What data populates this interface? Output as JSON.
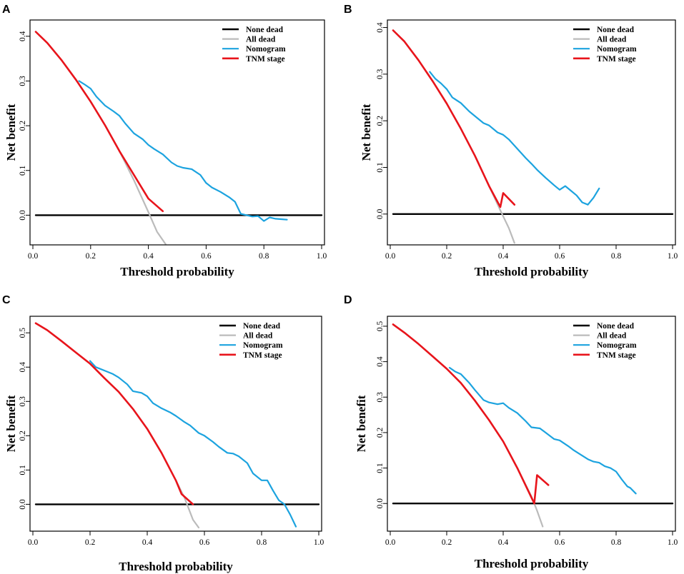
{
  "chart_data": [
    {
      "type": "line",
      "panel": "A",
      "xlabel": "Threshold probability",
      "ylabel": "Net benefit",
      "xlim": [
        0,
        1.0
      ],
      "ylim": [
        -0.06,
        0.43
      ],
      "xticks": [
        "0.0",
        "0.2",
        "0.4",
        "0.6",
        "0.8",
        "1.0"
      ],
      "yticks": [
        "0.0",
        "0.1",
        "0.2",
        "0.3",
        "0.4"
      ],
      "legend_position": "top-right",
      "legend": [
        "None dead",
        "All dead",
        "Nomogram",
        "TNM stage"
      ],
      "colors": {
        "none": "#000000",
        "all": "#bbbbbb",
        "nomogram": "#1ca3df",
        "tnm": "#e8141b"
      },
      "series": [
        {
          "name": "None dead",
          "x": [
            0.01,
            1.0
          ],
          "y": [
            0,
            0
          ]
        },
        {
          "name": "All dead",
          "x": [
            0.01,
            0.05,
            0.1,
            0.15,
            0.2,
            0.25,
            0.3,
            0.35,
            0.4,
            0.43,
            0.46
          ],
          "y": [
            0.41,
            0.385,
            0.346,
            0.302,
            0.254,
            0.201,
            0.143,
            0.078,
            0.007,
            -0.037,
            -0.065
          ]
        },
        {
          "name": "Nomogram",
          "x": [
            0.16,
            0.18,
            0.2,
            0.22,
            0.25,
            0.28,
            0.3,
            0.32,
            0.35,
            0.38,
            0.4,
            0.42,
            0.45,
            0.48,
            0.5,
            0.52,
            0.55,
            0.58,
            0.6,
            0.62,
            0.65,
            0.68,
            0.7,
            0.72,
            0.74,
            0.76,
            0.78,
            0.8,
            0.82,
            0.84,
            0.86,
            0.88
          ],
          "y": [
            0.3,
            0.292,
            0.283,
            0.265,
            0.245,
            0.232,
            0.222,
            0.205,
            0.183,
            0.17,
            0.157,
            0.148,
            0.136,
            0.118,
            0.11,
            0.106,
            0.103,
            0.09,
            0.072,
            0.062,
            0.052,
            0.04,
            0.03,
            0.003,
            0.0,
            -0.003,
            -0.002,
            -0.013,
            -0.005,
            -0.008,
            -0.009,
            -0.01
          ]
        },
        {
          "name": "TNM stage",
          "x": [
            0.01,
            0.05,
            0.1,
            0.15,
            0.2,
            0.25,
            0.3,
            0.35,
            0.4,
            0.45
          ],
          "y": [
            0.41,
            0.385,
            0.346,
            0.302,
            0.254,
            0.201,
            0.143,
            0.09,
            0.037,
            0.009
          ]
        }
      ]
    },
    {
      "type": "line",
      "panel": "B",
      "xlabel": "Threshold probability",
      "ylabel": "Net benefit",
      "xlim": [
        0,
        1.0
      ],
      "ylim": [
        -0.06,
        0.41
      ],
      "xticks": [
        "0.0",
        "0.2",
        "0.4",
        "0.6",
        "0.8",
        "1.0"
      ],
      "yticks": [
        "0.0",
        "0.1",
        "0.2",
        "0.3",
        "0.4"
      ],
      "legend_position": "top-right",
      "legend": [
        "None dead",
        "All dead",
        "Nomogram",
        "TNM stage"
      ],
      "colors": {
        "none": "#000000",
        "all": "#bbbbbb",
        "nomogram": "#1ca3df",
        "tnm": "#e8141b"
      },
      "series": [
        {
          "name": "None dead",
          "x": [
            0.01,
            1.0
          ],
          "y": [
            0,
            0
          ]
        },
        {
          "name": "All dead",
          "x": [
            0.01,
            0.05,
            0.1,
            0.15,
            0.2,
            0.25,
            0.3,
            0.35,
            0.39,
            0.42,
            0.44
          ],
          "y": [
            0.394,
            0.37,
            0.33,
            0.285,
            0.237,
            0.183,
            0.125,
            0.06,
            0.008,
            -0.03,
            -0.062
          ]
        },
        {
          "name": "Nomogram",
          "x": [
            0.14,
            0.16,
            0.18,
            0.2,
            0.22,
            0.25,
            0.28,
            0.3,
            0.33,
            0.35,
            0.38,
            0.4,
            0.42,
            0.45,
            0.48,
            0.5,
            0.52,
            0.55,
            0.58,
            0.6,
            0.62,
            0.64,
            0.66,
            0.68,
            0.7,
            0.72,
            0.74
          ],
          "y": [
            0.305,
            0.29,
            0.28,
            0.268,
            0.25,
            0.238,
            0.22,
            0.21,
            0.195,
            0.19,
            0.175,
            0.17,
            0.16,
            0.14,
            0.12,
            0.108,
            0.095,
            0.078,
            0.062,
            0.052,
            0.06,
            0.05,
            0.04,
            0.025,
            0.02,
            0.035,
            0.055
          ]
        },
        {
          "name": "TNM stage",
          "x": [
            0.01,
            0.05,
            0.1,
            0.15,
            0.2,
            0.25,
            0.3,
            0.35,
            0.39,
            0.4,
            0.44
          ],
          "y": [
            0.394,
            0.37,
            0.33,
            0.285,
            0.237,
            0.183,
            0.125,
            0.06,
            0.015,
            0.045,
            0.02
          ]
        }
      ]
    },
    {
      "type": "line",
      "panel": "C",
      "xlabel": "Threshold probability",
      "ylabel": "Net benefit",
      "xlim": [
        0,
        1.0
      ],
      "ylim": [
        -0.07,
        0.54
      ],
      "xticks": [
        "0.0",
        "0.2",
        "0.4",
        "0.6",
        "0.8",
        "1.0"
      ],
      "yticks": [
        "0.0",
        "0.1",
        "0.2",
        "0.3",
        "0.4",
        "0.5"
      ],
      "legend_position": "top-right",
      "legend": [
        "None dead",
        "All dead",
        "Nomogram",
        "TNM stage"
      ],
      "colors": {
        "none": "#000000",
        "all": "#bbbbbb",
        "nomogram": "#1ca3df",
        "tnm": "#e8141b"
      },
      "series": [
        {
          "name": "None dead",
          "x": [
            0.01,
            1.0
          ],
          "y": [
            0,
            0
          ]
        },
        {
          "name": "All dead",
          "x": [
            0.01,
            0.05,
            0.1,
            0.15,
            0.2,
            0.25,
            0.3,
            0.35,
            0.4,
            0.45,
            0.5,
            0.53,
            0.56,
            0.58
          ],
          "y": [
            0.528,
            0.508,
            0.476,
            0.443,
            0.41,
            0.368,
            0.328,
            0.278,
            0.22,
            0.15,
            0.07,
            0.02,
            -0.045,
            -0.068
          ]
        },
        {
          "name": "Nomogram",
          "x": [
            0.2,
            0.22,
            0.25,
            0.28,
            0.3,
            0.33,
            0.35,
            0.38,
            0.4,
            0.42,
            0.45,
            0.48,
            0.5,
            0.53,
            0.55,
            0.58,
            0.6,
            0.63,
            0.65,
            0.68,
            0.7,
            0.72,
            0.75,
            0.77,
            0.8,
            0.82,
            0.84,
            0.86,
            0.88,
            0.9,
            0.92
          ],
          "y": [
            0.418,
            0.4,
            0.39,
            0.38,
            0.37,
            0.35,
            0.33,
            0.325,
            0.315,
            0.295,
            0.28,
            0.268,
            0.258,
            0.24,
            0.23,
            0.208,
            0.2,
            0.182,
            0.168,
            0.15,
            0.148,
            0.14,
            0.12,
            0.09,
            0.07,
            0.07,
            0.04,
            0.012,
            0.0,
            -0.03,
            -0.065
          ]
        },
        {
          "name": "TNM stage",
          "x": [
            0.01,
            0.05,
            0.1,
            0.15,
            0.2,
            0.25,
            0.3,
            0.35,
            0.4,
            0.45,
            0.5,
            0.52,
            0.56
          ],
          "y": [
            0.528,
            0.508,
            0.476,
            0.443,
            0.41,
            0.368,
            0.328,
            0.278,
            0.22,
            0.15,
            0.07,
            0.03,
            0.0
          ]
        }
      ]
    },
    {
      "type": "line",
      "panel": "D",
      "xlabel": "Threshold probability",
      "ylabel": "Net benefit",
      "xlim": [
        0,
        1.0
      ],
      "ylim": [
        -0.07,
        0.52
      ],
      "xticks": [
        "0.0",
        "0.2",
        "0.4",
        "0.6",
        "0.8",
        "1.0"
      ],
      "yticks": [
        "0.0",
        "0.1",
        "0.2",
        "0.3",
        "0.4",
        "0.5"
      ],
      "legend_position": "top-right",
      "legend": [
        "None dead",
        "All dead",
        "Nomogram",
        "TNM stage"
      ],
      "colors": {
        "none": "#000000",
        "all": "#bbbbbb",
        "nomogram": "#1ca3df",
        "tnm": "#e8141b"
      },
      "series": [
        {
          "name": "None dead",
          "x": [
            0.01,
            1.0
          ],
          "y": [
            0,
            0
          ]
        },
        {
          "name": "All dead",
          "x": [
            0.01,
            0.05,
            0.1,
            0.15,
            0.2,
            0.25,
            0.3,
            0.35,
            0.4,
            0.45,
            0.5,
            0.52,
            0.54
          ],
          "y": [
            0.505,
            0.482,
            0.45,
            0.415,
            0.38,
            0.34,
            0.29,
            0.235,
            0.175,
            0.1,
            0.02,
            -0.02,
            -0.065
          ]
        },
        {
          "name": "Nomogram",
          "x": [
            0.21,
            0.23,
            0.25,
            0.28,
            0.3,
            0.33,
            0.35,
            0.38,
            0.4,
            0.42,
            0.45,
            0.48,
            0.5,
            0.53,
            0.55,
            0.58,
            0.6,
            0.63,
            0.65,
            0.68,
            0.7,
            0.72,
            0.74,
            0.76,
            0.78,
            0.8,
            0.82,
            0.84,
            0.85,
            0.87
          ],
          "y": [
            0.383,
            0.372,
            0.365,
            0.34,
            0.32,
            0.292,
            0.285,
            0.28,
            0.283,
            0.27,
            0.255,
            0.232,
            0.215,
            0.212,
            0.2,
            0.182,
            0.178,
            0.162,
            0.15,
            0.135,
            0.125,
            0.118,
            0.115,
            0.105,
            0.1,
            0.09,
            0.068,
            0.048,
            0.044,
            0.028
          ]
        },
        {
          "name": "TNM stage",
          "x": [
            0.01,
            0.05,
            0.1,
            0.15,
            0.2,
            0.25,
            0.3,
            0.35,
            0.4,
            0.45,
            0.51,
            0.52,
            0.56
          ],
          "y": [
            0.505,
            0.482,
            0.45,
            0.415,
            0.38,
            0.34,
            0.29,
            0.235,
            0.175,
            0.1,
            0.0,
            0.08,
            0.052
          ]
        }
      ]
    }
  ]
}
